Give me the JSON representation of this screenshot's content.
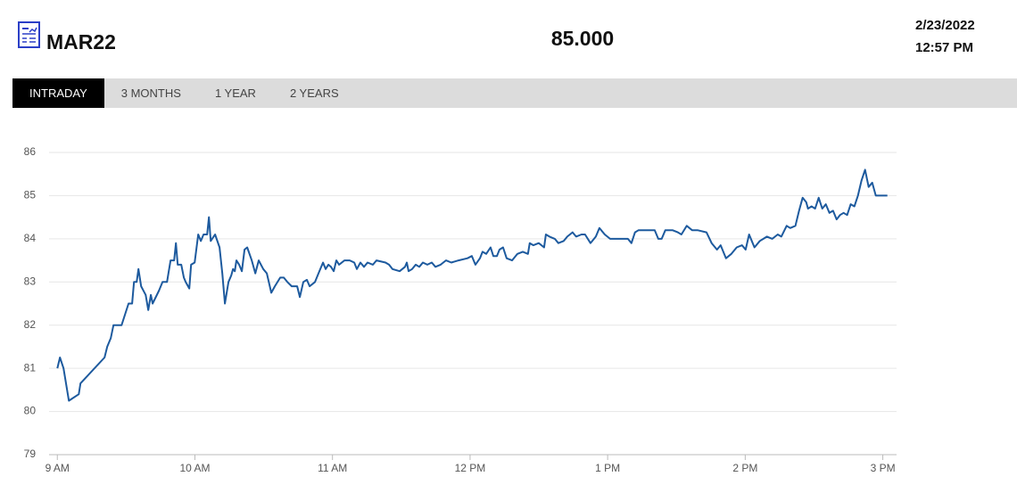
{
  "header": {
    "symbol": "MAR22",
    "price": "85.000",
    "date": "2/23/2022",
    "time": "12:57 PM"
  },
  "tabs": [
    {
      "label": "INTRADAY",
      "active": true
    },
    {
      "label": "3 MONTHS",
      "active": false
    },
    {
      "label": "1 YEAR",
      "active": false
    },
    {
      "label": "2 YEARS",
      "active": false
    }
  ],
  "chart_data": {
    "type": "line",
    "color": "#1d5a9e",
    "grid": true,
    "xlim": [
      8.94,
      15.1
    ],
    "ylim": [
      79,
      86
    ],
    "xticks": [
      {
        "value": 9,
        "label": "9 AM"
      },
      {
        "value": 10,
        "label": "10 AM"
      },
      {
        "value": 11,
        "label": "11 AM"
      },
      {
        "value": 12,
        "label": "12 PM"
      },
      {
        "value": 13,
        "label": "1 PM"
      },
      {
        "value": 14,
        "label": "2 PM"
      },
      {
        "value": 15,
        "label": "3 PM"
      }
    ],
    "yticks": [
      79,
      80,
      81,
      82,
      83,
      84,
      85,
      86
    ],
    "x": [
      9.0,
      9.019,
      9.045,
      9.084,
      9.156,
      9.168,
      9.343,
      9.363,
      9.389,
      9.408,
      9.467,
      9.518,
      9.544,
      9.557,
      9.577,
      9.59,
      9.609,
      9.642,
      9.661,
      9.68,
      9.693,
      9.739,
      9.765,
      9.797,
      9.823,
      9.849,
      9.862,
      9.875,
      9.901,
      9.92,
      9.933,
      9.959,
      9.972,
      9.998,
      10.024,
      10.043,
      10.063,
      10.089,
      10.102,
      10.115,
      10.147,
      10.179,
      10.199,
      10.218,
      10.244,
      10.264,
      10.277,
      10.29,
      10.302,
      10.322,
      10.341,
      10.361,
      10.38,
      10.413,
      10.439,
      10.464,
      10.497,
      10.523,
      10.555,
      10.581,
      10.62,
      10.646,
      10.672,
      10.704,
      10.743,
      10.763,
      10.788,
      10.814,
      10.834,
      10.873,
      10.905,
      10.931,
      10.95,
      10.97,
      10.989,
      11.009,
      11.028,
      11.048,
      11.087,
      11.125,
      11.158,
      11.177,
      11.203,
      11.229,
      11.255,
      11.294,
      11.32,
      11.385,
      11.411,
      11.436,
      11.488,
      11.527,
      11.54,
      11.553,
      11.579,
      11.605,
      11.631,
      11.657,
      11.689,
      11.722,
      11.748,
      11.786,
      11.825,
      11.864,
      11.916,
      11.981,
      12.013,
      12.039,
      12.072,
      12.091,
      12.117,
      12.149,
      12.169,
      12.195,
      12.214,
      12.24,
      12.266,
      12.305,
      12.344,
      12.383,
      12.421,
      12.434,
      12.46,
      12.499,
      12.538,
      12.551,
      12.577,
      12.616,
      12.642,
      12.681,
      12.707,
      12.745,
      12.771,
      12.81,
      12.836,
      12.875,
      12.914,
      12.94,
      12.979,
      13.018,
      13.082,
      13.147,
      13.173,
      13.199,
      13.225,
      13.29,
      13.342,
      13.368,
      13.393,
      13.419,
      13.471,
      13.51,
      13.536,
      13.575,
      13.614,
      13.653,
      13.718,
      13.756,
      13.795,
      13.821,
      13.86,
      13.899,
      13.938,
      13.977,
      14.003,
      14.028,
      14.067,
      14.106,
      14.132,
      14.158,
      14.197,
      14.236,
      14.262,
      14.301,
      14.327,
      14.365,
      14.391,
      14.417,
      14.443,
      14.456,
      14.482,
      14.508,
      14.534,
      14.56,
      14.586,
      14.612,
      14.638,
      14.664,
      14.689,
      14.715,
      14.741,
      14.767,
      14.793,
      14.819,
      14.845,
      14.871,
      14.897,
      14.923,
      14.949,
      15.033
    ],
    "values": [
      81.0,
      81.25,
      81.0,
      80.25,
      80.4,
      80.65,
      81.25,
      81.5,
      81.7,
      82.0,
      82.0,
      82.5,
      82.5,
      83.0,
      83.0,
      83.3,
      82.9,
      82.7,
      82.35,
      82.7,
      82.5,
      82.8,
      83.0,
      83.0,
      83.5,
      83.5,
      83.9,
      83.4,
      83.4,
      83.1,
      83.0,
      82.85,
      83.4,
      83.45,
      84.1,
      83.95,
      84.1,
      84.1,
      84.5,
      83.95,
      84.1,
      83.8,
      83.2,
      82.5,
      83.0,
      83.15,
      83.3,
      83.25,
      83.5,
      83.4,
      83.25,
      83.75,
      83.8,
      83.5,
      83.2,
      83.5,
      83.3,
      83.2,
      82.75,
      82.9,
      83.1,
      83.1,
      83.0,
      82.9,
      82.9,
      82.65,
      83.0,
      83.05,
      82.9,
      83.0,
      83.25,
      83.45,
      83.3,
      83.4,
      83.35,
      83.25,
      83.5,
      83.4,
      83.5,
      83.5,
      83.45,
      83.3,
      83.45,
      83.35,
      83.45,
      83.4,
      83.5,
      83.45,
      83.4,
      83.3,
      83.25,
      83.35,
      83.45,
      83.25,
      83.3,
      83.4,
      83.35,
      83.45,
      83.4,
      83.45,
      83.35,
      83.4,
      83.5,
      83.45,
      83.5,
      83.55,
      83.6,
      83.4,
      83.55,
      83.7,
      83.65,
      83.8,
      83.6,
      83.6,
      83.75,
      83.8,
      83.55,
      83.5,
      83.65,
      83.7,
      83.65,
      83.9,
      83.85,
      83.9,
      83.8,
      84.1,
      84.05,
      84.0,
      83.9,
      83.95,
      84.05,
      84.15,
      84.05,
      84.1,
      84.1,
      83.9,
      84.05,
      84.25,
      84.1,
      84.0,
      84.0,
      84.0,
      83.9,
      84.15,
      84.2,
      84.2,
      84.2,
      84.0,
      84.0,
      84.2,
      84.2,
      84.15,
      84.1,
      84.3,
      84.2,
      84.2,
      84.15,
      83.9,
      83.75,
      83.85,
      83.55,
      83.65,
      83.8,
      83.85,
      83.75,
      84.1,
      83.8,
      83.95,
      84.0,
      84.05,
      84.0,
      84.1,
      84.05,
      84.3,
      84.25,
      84.3,
      84.65,
      84.95,
      84.85,
      84.7,
      84.75,
      84.7,
      84.95,
      84.7,
      84.8,
      84.6,
      84.65,
      84.45,
      84.55,
      84.6,
      84.55,
      84.8,
      84.75,
      85.0,
      85.35,
      85.6,
      85.2,
      85.3,
      85.0,
      85.0
    ]
  }
}
